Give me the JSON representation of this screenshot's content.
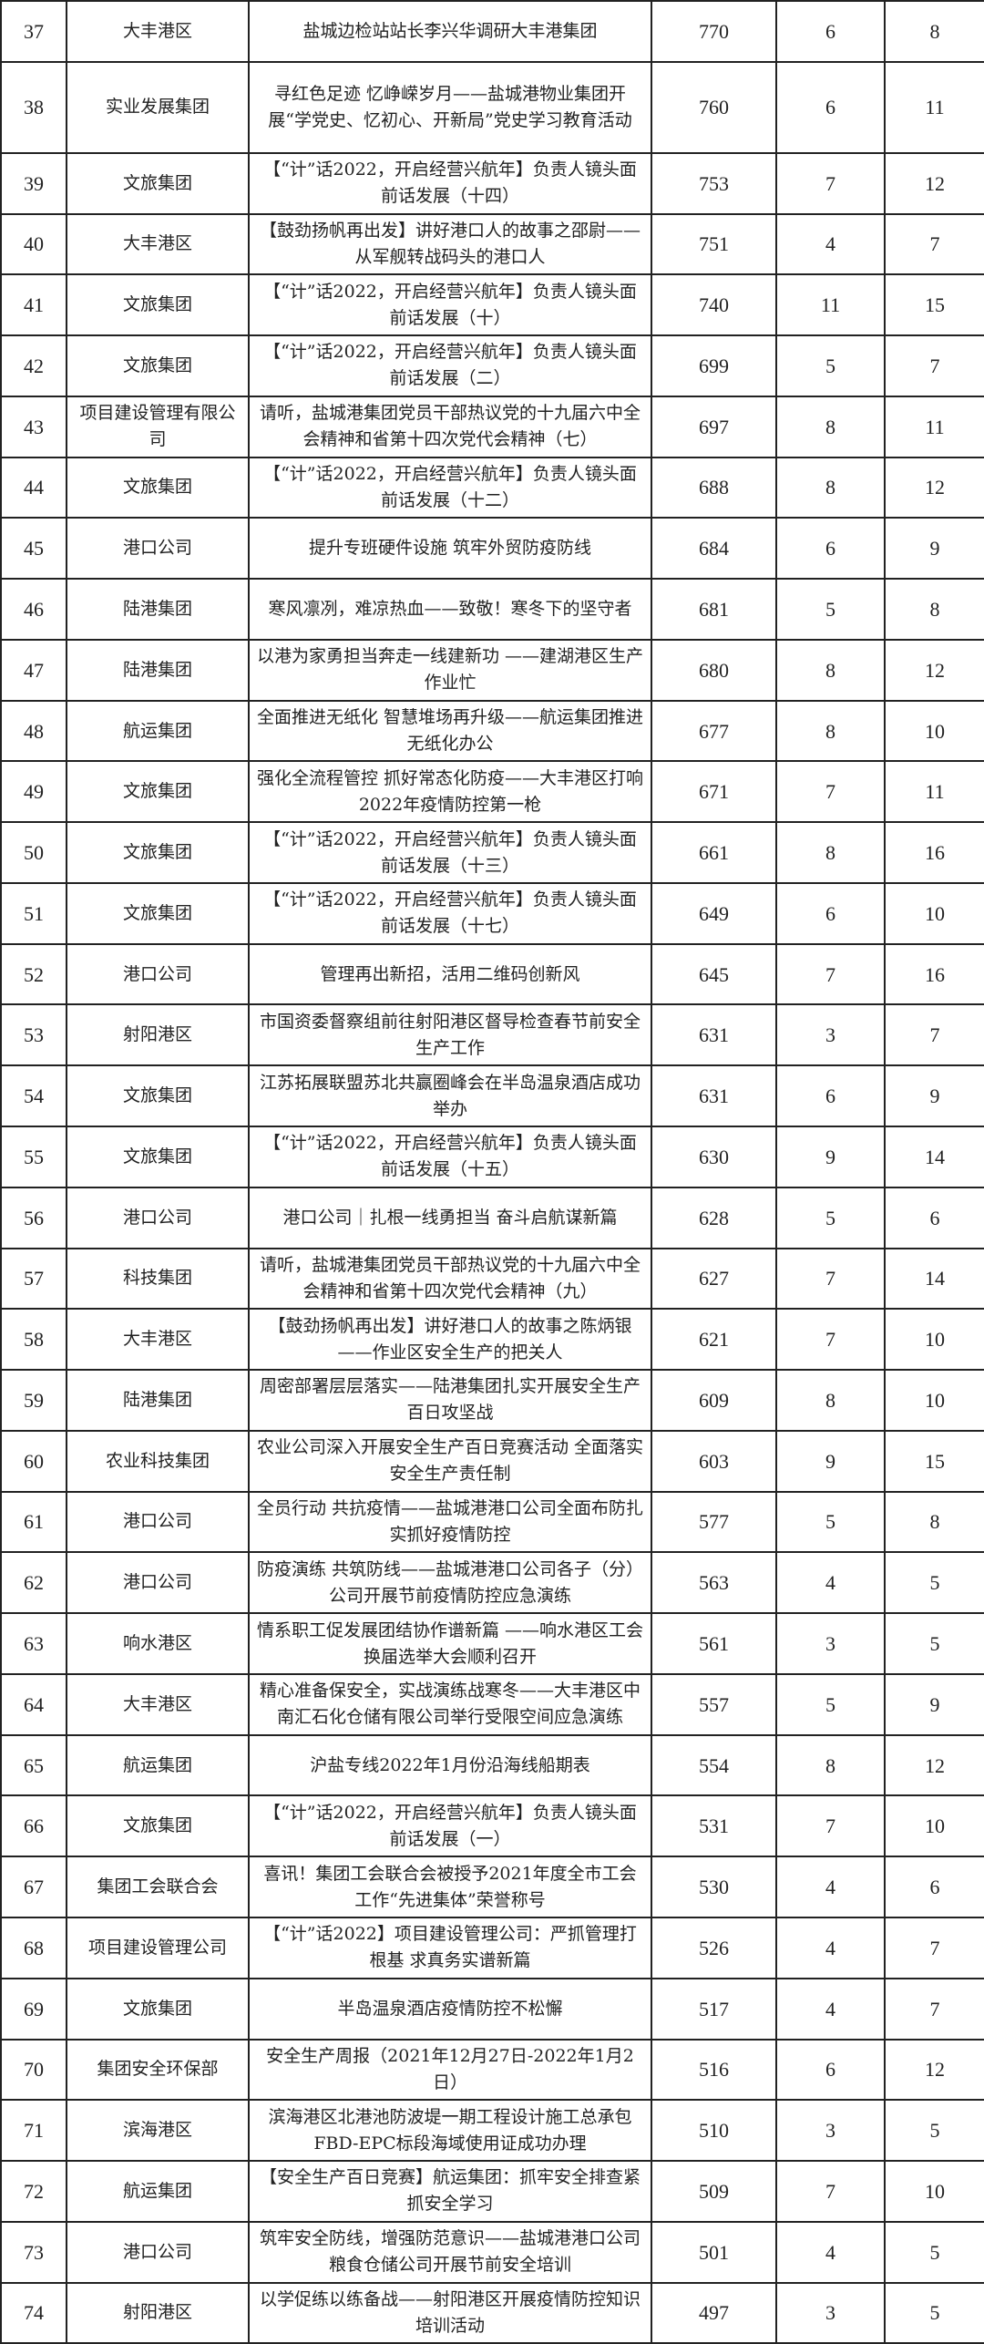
{
  "rows": [
    [
      "37",
      "大丰港区",
      "盐城边检站站长李兴华调研大丰港集团",
      "770",
      "6",
      "8"
    ],
    [
      "38",
      "实业发展集团",
      "寻红色足迹 忆峥嵘岁月——盐城港物业集团开展“学党史、忆初心、开新局”党史学习教育活动",
      "760",
      "6",
      "11"
    ],
    [
      "39",
      "文旅集团",
      "【“计”话2022，开启经营兴航年】负责人镜头面前话发展（十四）",
      "753",
      "7",
      "12"
    ],
    [
      "40",
      "大丰港区",
      "【鼓劲扬帆再出发】讲好港口人的故事之邵尉——从军舰转战码头的港口人",
      "751",
      "4",
      "7"
    ],
    [
      "41",
      "文旅集团",
      "【“计”话2022，开启经营兴航年】负责人镜头面前话发展（十）",
      "740",
      "11",
      "15"
    ],
    [
      "42",
      "文旅集团",
      "【“计”话2022，开启经营兴航年】负责人镜头面前话发展（二）",
      "699",
      "5",
      "7"
    ],
    [
      "43",
      "项目建设管理有限公司",
      "请听，盐城港集团党员干部热议党的十九届六中全会精神和省第十四次党代会精神（七）",
      "697",
      "8",
      "11"
    ],
    [
      "44",
      "文旅集团",
      "【“计”话2022，开启经营兴航年】负责人镜头面前话发展（十二）",
      "688",
      "8",
      "12"
    ],
    [
      "45",
      "港口公司",
      "提升专班硬件设施 筑牢外贸防疫防线",
      "684",
      "6",
      "9"
    ],
    [
      "46",
      "陆港集团",
      "寒风凛冽，难凉热血——致敬！寒冬下的坚守者",
      "681",
      "5",
      "8"
    ],
    [
      "47",
      "陆港集团",
      "以港为家勇担当奔走一线建新功 ——建湖港区生产作业忙",
      "680",
      "8",
      "12"
    ],
    [
      "48",
      "航运集团",
      "全面推进无纸化 智慧堆场再升级——航运集团推进无纸化办公",
      "677",
      "8",
      "10"
    ],
    [
      "49",
      "文旅集团",
      "强化全流程管控 抓好常态化防疫——大丰港区打响2022年疫情防控第一枪",
      "671",
      "7",
      "11"
    ],
    [
      "50",
      "文旅集团",
      "【“计”话2022，开启经营兴航年】负责人镜头面前话发展（十三）",
      "661",
      "8",
      "16"
    ],
    [
      "51",
      "文旅集团",
      "【“计”话2022，开启经营兴航年】负责人镜头面前话发展（十七）",
      "649",
      "6",
      "10"
    ],
    [
      "52",
      "港口公司",
      "管理再出新招，活用二维码创新风",
      "645",
      "7",
      "16"
    ],
    [
      "53",
      "射阳港区",
      "市国资委督察组前往射阳港区督导检查春节前安全生产工作",
      "631",
      "3",
      "7"
    ],
    [
      "54",
      "文旅集团",
      "江苏拓展联盟苏北共赢圈峰会在半岛温泉酒店成功举办",
      "631",
      "6",
      "9"
    ],
    [
      "55",
      "文旅集团",
      "【“计”话2022，开启经营兴航年】负责人镜头面前话发展（十五）",
      "630",
      "9",
      "14"
    ],
    [
      "56",
      "港口公司",
      "港口公司｜扎根一线勇担当 奋斗启航谋新篇",
      "628",
      "5",
      "6"
    ],
    [
      "57",
      "科技集团",
      "请听，盐城港集团党员干部热议党的十九届六中全会精神和省第十四次党代会精神（九）",
      "627",
      "7",
      "14"
    ],
    [
      "58",
      "大丰港区",
      "【鼓劲扬帆再出发】讲好港口人的故事之陈炳银——作业区安全生产的把关人",
      "621",
      "7",
      "10"
    ],
    [
      "59",
      "陆港集团",
      "周密部署层层落实——陆港集团扎实开展安全生产百日攻坚战",
      "609",
      "8",
      "10"
    ],
    [
      "60",
      "农业科技集团",
      "农业公司深入开展安全生产百日竞赛活动 全面落实安全生产责任制",
      "603",
      "9",
      "15"
    ],
    [
      "61",
      "港口公司",
      "全员行动 共抗疫情——盐城港港口公司全面布防扎实抓好疫情防控",
      "577",
      "5",
      "8"
    ],
    [
      "62",
      "港口公司",
      "防疫演练 共筑防线——盐城港港口公司各子（分）公司开展节前疫情防控应急演练",
      "563",
      "4",
      "5"
    ],
    [
      "63",
      "响水港区",
      "情系职工促发展团结协作谱新篇 ——响水港区工会换届选举大会顺利召开",
      "561",
      "3",
      "5"
    ],
    [
      "64",
      "大丰港区",
      "精心准备保安全，实战演练战寒冬——大丰港区中南汇石化仓储有限公司举行受限空间应急演练",
      "557",
      "5",
      "9"
    ],
    [
      "65",
      "航运集团",
      "沪盐专线2022年1月份沿海线船期表",
      "554",
      "8",
      "12"
    ],
    [
      "66",
      "文旅集团",
      "【“计”话2022，开启经营兴航年】负责人镜头面前话发展（一）",
      "531",
      "7",
      "10"
    ],
    [
      "67",
      "集团工会联合会",
      "喜讯！集团工会联合会被授予2021年度全市工会工作“先进集体”荣誉称号",
      "530",
      "4",
      "6"
    ],
    [
      "68",
      "项目建设管理公司",
      "【“计”话2022】项目建设管理公司：严抓管理打根基 求真务实谱新篇",
      "526",
      "4",
      "7"
    ],
    [
      "69",
      "文旅集团",
      "半岛温泉酒店疫情防控不松懈",
      "517",
      "4",
      "7"
    ],
    [
      "70",
      "集团安全环保部",
      "安全生产周报（2021年12月27日-2022年1月2日）",
      "516",
      "6",
      "12"
    ],
    [
      "71",
      "滨海港区",
      "滨海港区北港池防波堤一期工程设计施工总承包FBD-EPC标段海域使用证成功办理",
      "510",
      "3",
      "5"
    ],
    [
      "72",
      "航运集团",
      "【安全生产百日竞赛】航运集团：抓牢安全排查紧抓安全学习",
      "509",
      "7",
      "10"
    ],
    [
      "73",
      "港口公司",
      "筑牢安全防线，增强防范意识——盐城港港口公司粮食仓储公司开展节前安全培训",
      "501",
      "4",
      "5"
    ],
    [
      "74",
      "射阳港区",
      "以学促练以练备战——射阳港区开展疫情防控知识培训活动",
      "497",
      "3",
      "5"
    ]
  ]
}
